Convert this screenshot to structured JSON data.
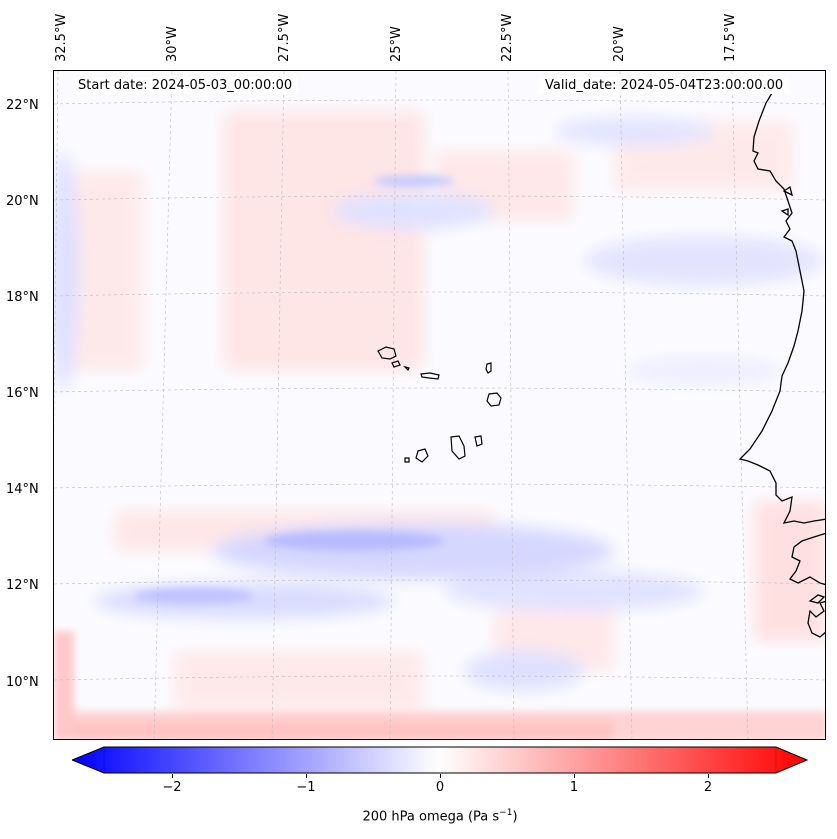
{
  "map": {
    "projection_labels": {
      "longitudes": [
        "32.5°W",
        "30°W",
        "27.5°W",
        "25°W",
        "22.5°W",
        "20°W",
        "17.5°W"
      ],
      "latitudes": [
        "22°N",
        "20°N",
        "18°N",
        "16°N",
        "14°N",
        "12°N",
        "10°N"
      ]
    },
    "start_date_text": "Start date: 2024-05-03_00:00:00",
    "valid_date_text": "Valid_date: 2024-05-04T23:00:00.00",
    "features": [
      "Cape Verde islands",
      "West African coastline"
    ],
    "gridlines": true
  },
  "colorbar": {
    "label_main": "200 hPa omega (Pa s",
    "label_sup": "−1",
    "label_close": ")",
    "ticks": [
      "−2",
      "−1",
      "0",
      "1",
      "2"
    ],
    "range": [
      -2.5,
      2.5
    ],
    "colormap": "bwr",
    "colors": {
      "low": "#0000ff",
      "mid": "#ffffff",
      "high": "#ff0000"
    },
    "extend": "both"
  }
}
